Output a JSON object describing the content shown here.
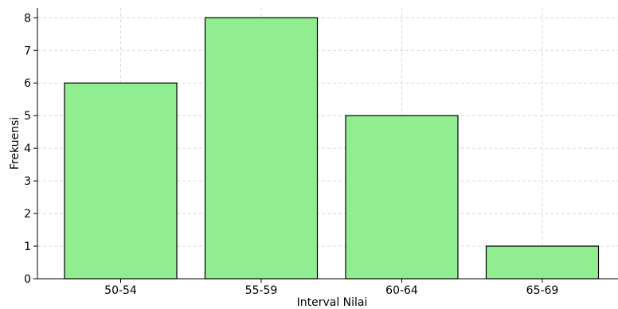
{
  "chart_data": {
    "type": "bar",
    "title": "",
    "xlabel": "Interval Nilai",
    "ylabel": "Frekuensi",
    "categories": [
      "50-54",
      "55-59",
      "60-64",
      "65-69"
    ],
    "values": [
      6,
      8,
      5,
      1
    ],
    "ylim": [
      0,
      8.3
    ],
    "yticks": [
      0,
      1,
      2,
      3,
      4,
      5,
      6,
      7,
      8
    ],
    "grid": true,
    "bar_color": "#90ee90",
    "edge_color": "#000000"
  }
}
